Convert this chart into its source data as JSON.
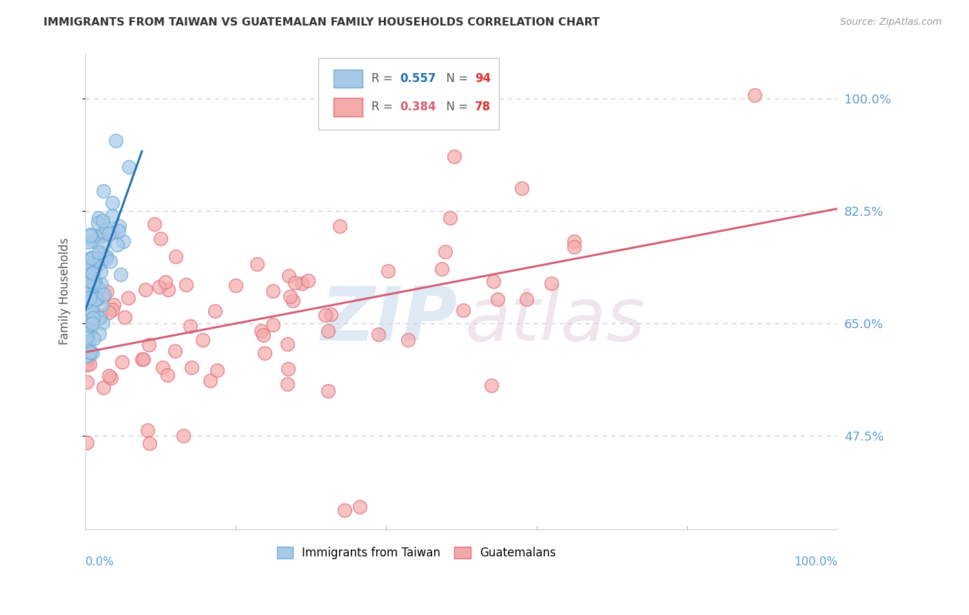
{
  "title": "IMMIGRANTS FROM TAIWAN VS GUATEMALAN FAMILY HOUSEHOLDS CORRELATION CHART",
  "source": "Source: ZipAtlas.com",
  "ylabel": "Family Households",
  "yticks": [
    47.5,
    65.0,
    82.5,
    100.0
  ],
  "xlim": [
    0.0,
    100.0
  ],
  "ylim": [
    33.0,
    107.0
  ],
  "taiwan_color": "#a8c8e8",
  "taiwan_edge_color": "#6baed6",
  "guatemalan_color": "#f4aaaa",
  "guatemalan_edge_color": "#e07080",
  "taiwan_line_color": "#2171b5",
  "guatemalan_line_color": "#d45f75",
  "tick_label_color": "#5b9bd5",
  "grid_color": "#cccccc",
  "background_color": "#ffffff",
  "title_fontsize": 11.5,
  "taiwan_R": 0.557,
  "guatemalan_R": 0.384,
  "taiwan_N": 94,
  "guatemalan_N": 78
}
